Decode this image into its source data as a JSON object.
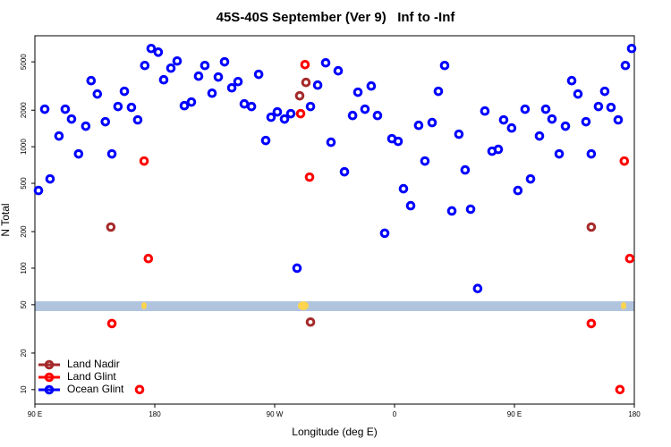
{
  "chart_data": {
    "type": "scatter",
    "title": "45S-40S September (Ver 9)   Inf to -Inf",
    "xlabel": "Longitude (deg E)",
    "ylabel": "N Total",
    "xlim": [
      90,
      540
    ],
    "ylim": [
      7.6,
      8200
    ],
    "ylog": true,
    "xticks": [
      {
        "value": 90,
        "label": "90 E"
      },
      180,
      {
        "value": 270,
        "label": "90 W"
      },
      {
        "value": 360,
        "label": "0"
      },
      {
        "value": 450,
        "label": "90 E"
      },
      {
        "value": 540,
        "label": "180"
      }
    ],
    "yticks": [
      10,
      20,
      50,
      100,
      200,
      500,
      1000,
      2000,
      5000
    ],
    "legend": "bottom-left",
    "series": [
      {
        "name": "Land Nadir",
        "color": "#a52a2a",
        "x": [
          147,
          288.8,
          293.5,
          296.9,
          507.7
        ],
        "values": [
          218,
          2626,
          3383,
          36,
          218
        ]
      },
      {
        "name": "Land Glint",
        "color": "#ff0000",
        "x": [
          147.8,
          172,
          168.6,
          175.2,
          289.5,
          292.8,
          296.2,
          507.7,
          529.2,
          532.5,
          536.6
        ],
        "values": [
          35,
          762,
          10,
          120,
          1871,
          4745,
          562,
          35,
          10,
          762,
          120
        ]
      },
      {
        "name": "Ocean Glint",
        "color": "#0000ff",
        "x": [
          92.7,
          97.4,
          101.4,
          108.1,
          112.8,
          117.5,
          122.8,
          128.2,
          132.2,
          136.9,
          142.9,
          147.8,
          152.4,
          157.2,
          162.5,
          167.2,
          172.5,
          177.3,
          182.6,
          186.7,
          192.1,
          196.8,
          202.2,
          207.5,
          212.9,
          217.6,
          223,
          227.7,
          232.4,
          237.8,
          242.5,
          247.2,
          252.6,
          258,
          263.3,
          267.3,
          272,
          277.4,
          282.1,
          286.8,
          296.9,
          302.3,
          308.3,
          312.3,
          317.7,
          322.4,
          328.5,
          332.5,
          337.8,
          342.5,
          347.2,
          352.6,
          358,
          362.7,
          366.7,
          372.1,
          378.1,
          382.8,
          388.2,
          392.9,
          397.6,
          403,
          408.3,
          413,
          417.1,
          422.4,
          427.8,
          433.2,
          437.9,
          441.9,
          447.9,
          452.6,
          458,
          462.1,
          468.8,
          473.5,
          478.2,
          483.6,
          488.3,
          493,
          497.7,
          503.7,
          507.7,
          513.1,
          517.8,
          522.5,
          527.9,
          533.3,
          538
        ],
        "values": [
          436,
          2037,
          543,
          1225,
          2037,
          1690,
          873,
          1476,
          3500,
          2716,
          1607,
          873,
          2143,
          2858,
          2108,
          1663,
          4667,
          6440,
          6010,
          3560,
          4436,
          5080,
          2178,
          2333,
          3810,
          4667,
          2760,
          3750,
          5000,
          3055,
          3440,
          2253,
          2143,
          3945,
          1125,
          1750,
          1936,
          1690,
          1871,
          100,
          2143,
          3215,
          4910,
          1089,
          4220,
          622,
          1807,
          2810,
          2037,
          3162,
          1807,
          194,
          1165,
          1107,
          451,
          327,
          1500,
          762,
          1581,
          2858,
          4667,
          296,
          1268,
          644,
          306,
          68,
          1968,
          919,
          951,
          1663,
          1426,
          436,
          2037,
          543,
          1225,
          2037,
          1690,
          873,
          1476,
          3500,
          2716,
          1607,
          873,
          2143,
          2858,
          2108,
          1663,
          4667,
          6440
        ]
      }
    ]
  }
}
